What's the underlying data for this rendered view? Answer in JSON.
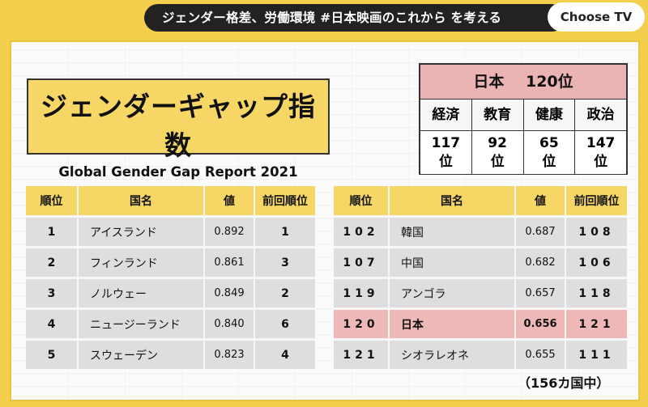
{
  "header": {
    "headline": "ジェンダー格差、労働環境 #日本映画のこれから を考える",
    "channel_button": "Choose TV"
  },
  "title": {
    "main": "ジェンダーギャップ指数",
    "sub": "Global Gender Gap Report 2021"
  },
  "japan_summary": {
    "country": "日本",
    "overall_rank": "120位",
    "categories": [
      "経済",
      "教育",
      "健康",
      "政治"
    ],
    "ranks": [
      {
        "num": "117",
        "unit": "位"
      },
      {
        "num": "92",
        "unit": "位"
      },
      {
        "num": "65",
        "unit": "位"
      },
      {
        "num": "147",
        "unit": "位"
      }
    ]
  },
  "table_columns": [
    "順位",
    "国名",
    "値",
    "前回順位"
  ],
  "left_table": [
    {
      "rank": "1",
      "country": "アイスランド",
      "value": "0.892",
      "prev": "1"
    },
    {
      "rank": "2",
      "country": "フィンランド",
      "value": "0.861",
      "prev": "3"
    },
    {
      "rank": "3",
      "country": "ノルウェー",
      "value": "0.849",
      "prev": "2"
    },
    {
      "rank": "4",
      "country": "ニュージーランド",
      "value": "0.840",
      "prev": "6"
    },
    {
      "rank": "5",
      "country": "スウェーデン",
      "value": "0.823",
      "prev": "4"
    }
  ],
  "right_table": [
    {
      "rank": "102",
      "country": "韓国",
      "value": "0.687",
      "prev": "108"
    },
    {
      "rank": "107",
      "country": "中国",
      "value": "0.682",
      "prev": "106"
    },
    {
      "rank": "119",
      "country": "アンゴラ",
      "value": "0.657",
      "prev": "118"
    },
    {
      "rank": "120",
      "country": "日本",
      "value": "0.656",
      "prev": "121",
      "highlight": true
    },
    {
      "rank": "121",
      "country": "シオラレオネ",
      "value": "0.655",
      "prev": "111"
    }
  ],
  "note": "（156カ国中）",
  "colors": {
    "accent_yellow": "#f6d766",
    "highlight_pink": "#efb8b8"
  }
}
